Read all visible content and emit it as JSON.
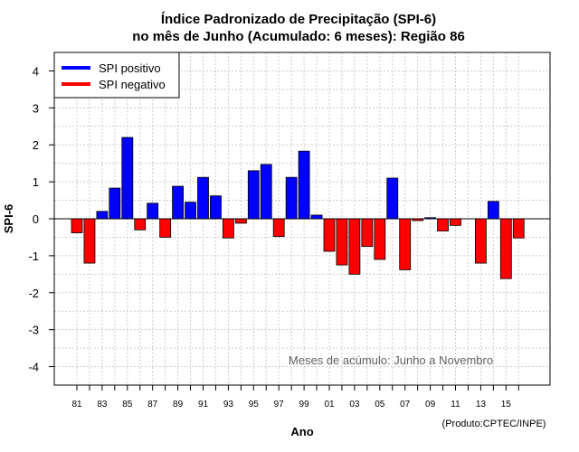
{
  "chart_data": {
    "type": "bar",
    "title_line1": "Índice Padronizado de Precipitação (SPI-6)",
    "title_line2": "no mês de Junho (Acumulado: 6 meses): Região 86",
    "xlabel": "Ano",
    "ylabel": "SPI-6",
    "ylim": [
      -4.5,
      4.5
    ],
    "yticks": [
      -4,
      -3,
      -2,
      -1,
      0,
      1,
      2,
      3,
      4
    ],
    "grid": true,
    "legend": [
      {
        "label": "SPI positivo",
        "color": "#0000ff"
      },
      {
        "label": "SPI negativo",
        "color": "#ff0000"
      }
    ],
    "annotation": "Meses de acúmulo: Junho a Novembro",
    "credit": "(Produto:CPTEC/INPE)",
    "xtick_labels": [
      "81",
      "83",
      "85",
      "87",
      "89",
      "91",
      "93",
      "95",
      "97",
      "99",
      "01",
      "03",
      "05",
      "07",
      "09",
      "11",
      "13",
      "15"
    ],
    "years": [
      1981,
      1982,
      1983,
      1984,
      1985,
      1986,
      1987,
      1988,
      1989,
      1990,
      1991,
      1992,
      1993,
      1994,
      1995,
      1996,
      1997,
      1998,
      1999,
      2000,
      2001,
      2002,
      2003,
      2004,
      2005,
      2006,
      2007,
      2008,
      2009,
      2010,
      2011,
      2012,
      2013,
      2014,
      2015,
      2016
    ],
    "values": [
      -0.38,
      -1.2,
      0.2,
      0.83,
      2.2,
      -0.3,
      0.42,
      -0.5,
      0.88,
      0.45,
      1.12,
      0.62,
      -0.52,
      -0.12,
      1.3,
      1.47,
      -0.48,
      1.12,
      1.83,
      0.1,
      -0.88,
      -1.25,
      -1.5,
      -0.75,
      -1.1,
      1.1,
      -1.38,
      -0.05,
      0.03,
      -0.33,
      -0.18,
      0,
      -1.2,
      0.47,
      -1.62,
      -0.52
    ],
    "colors": {
      "positive": "#0000ff",
      "negative": "#ff0000",
      "grid": "#cccccc",
      "axis": "#000000"
    }
  }
}
